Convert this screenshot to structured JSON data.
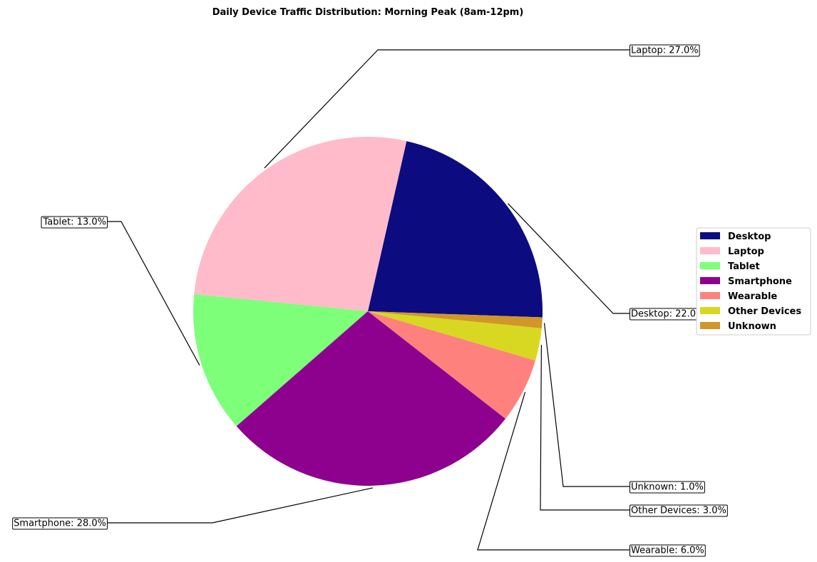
{
  "chart_data": {
    "type": "pie",
    "title": "Daily Device Traffic Distribution: Morning Peak (8am-12pm)",
    "slices": [
      {
        "label": "Desktop",
        "value": 22.0,
        "color": "#0c0c80",
        "callout": "Desktop: 22.0%"
      },
      {
        "label": "Laptop",
        "value": 27.0,
        "color": "#ffbbc9",
        "callout": "Laptop: 27.0%"
      },
      {
        "label": "Tablet",
        "value": 13.0,
        "color": "#7dff7a",
        "callout": "Tablet: 13.0%"
      },
      {
        "label": "Smartphone",
        "value": 28.0,
        "color": "#8e008e",
        "callout": "Smartphone: 28.0%"
      },
      {
        "label": "Wearable",
        "value": 6.0,
        "color": "#ff817e",
        "callout": "Wearable: 6.0%"
      },
      {
        "label": "Other Devices",
        "value": 3.0,
        "color": "#d8d822",
        "callout": "Other Devices: 3.0%"
      },
      {
        "label": "Unknown",
        "value": 1.0,
        "color": "#d1962a",
        "callout": "Unknown: 1.0%"
      }
    ],
    "start_angle_deg": -2,
    "direction": "counterclockwise",
    "legend_position": "right",
    "grid": false
  }
}
